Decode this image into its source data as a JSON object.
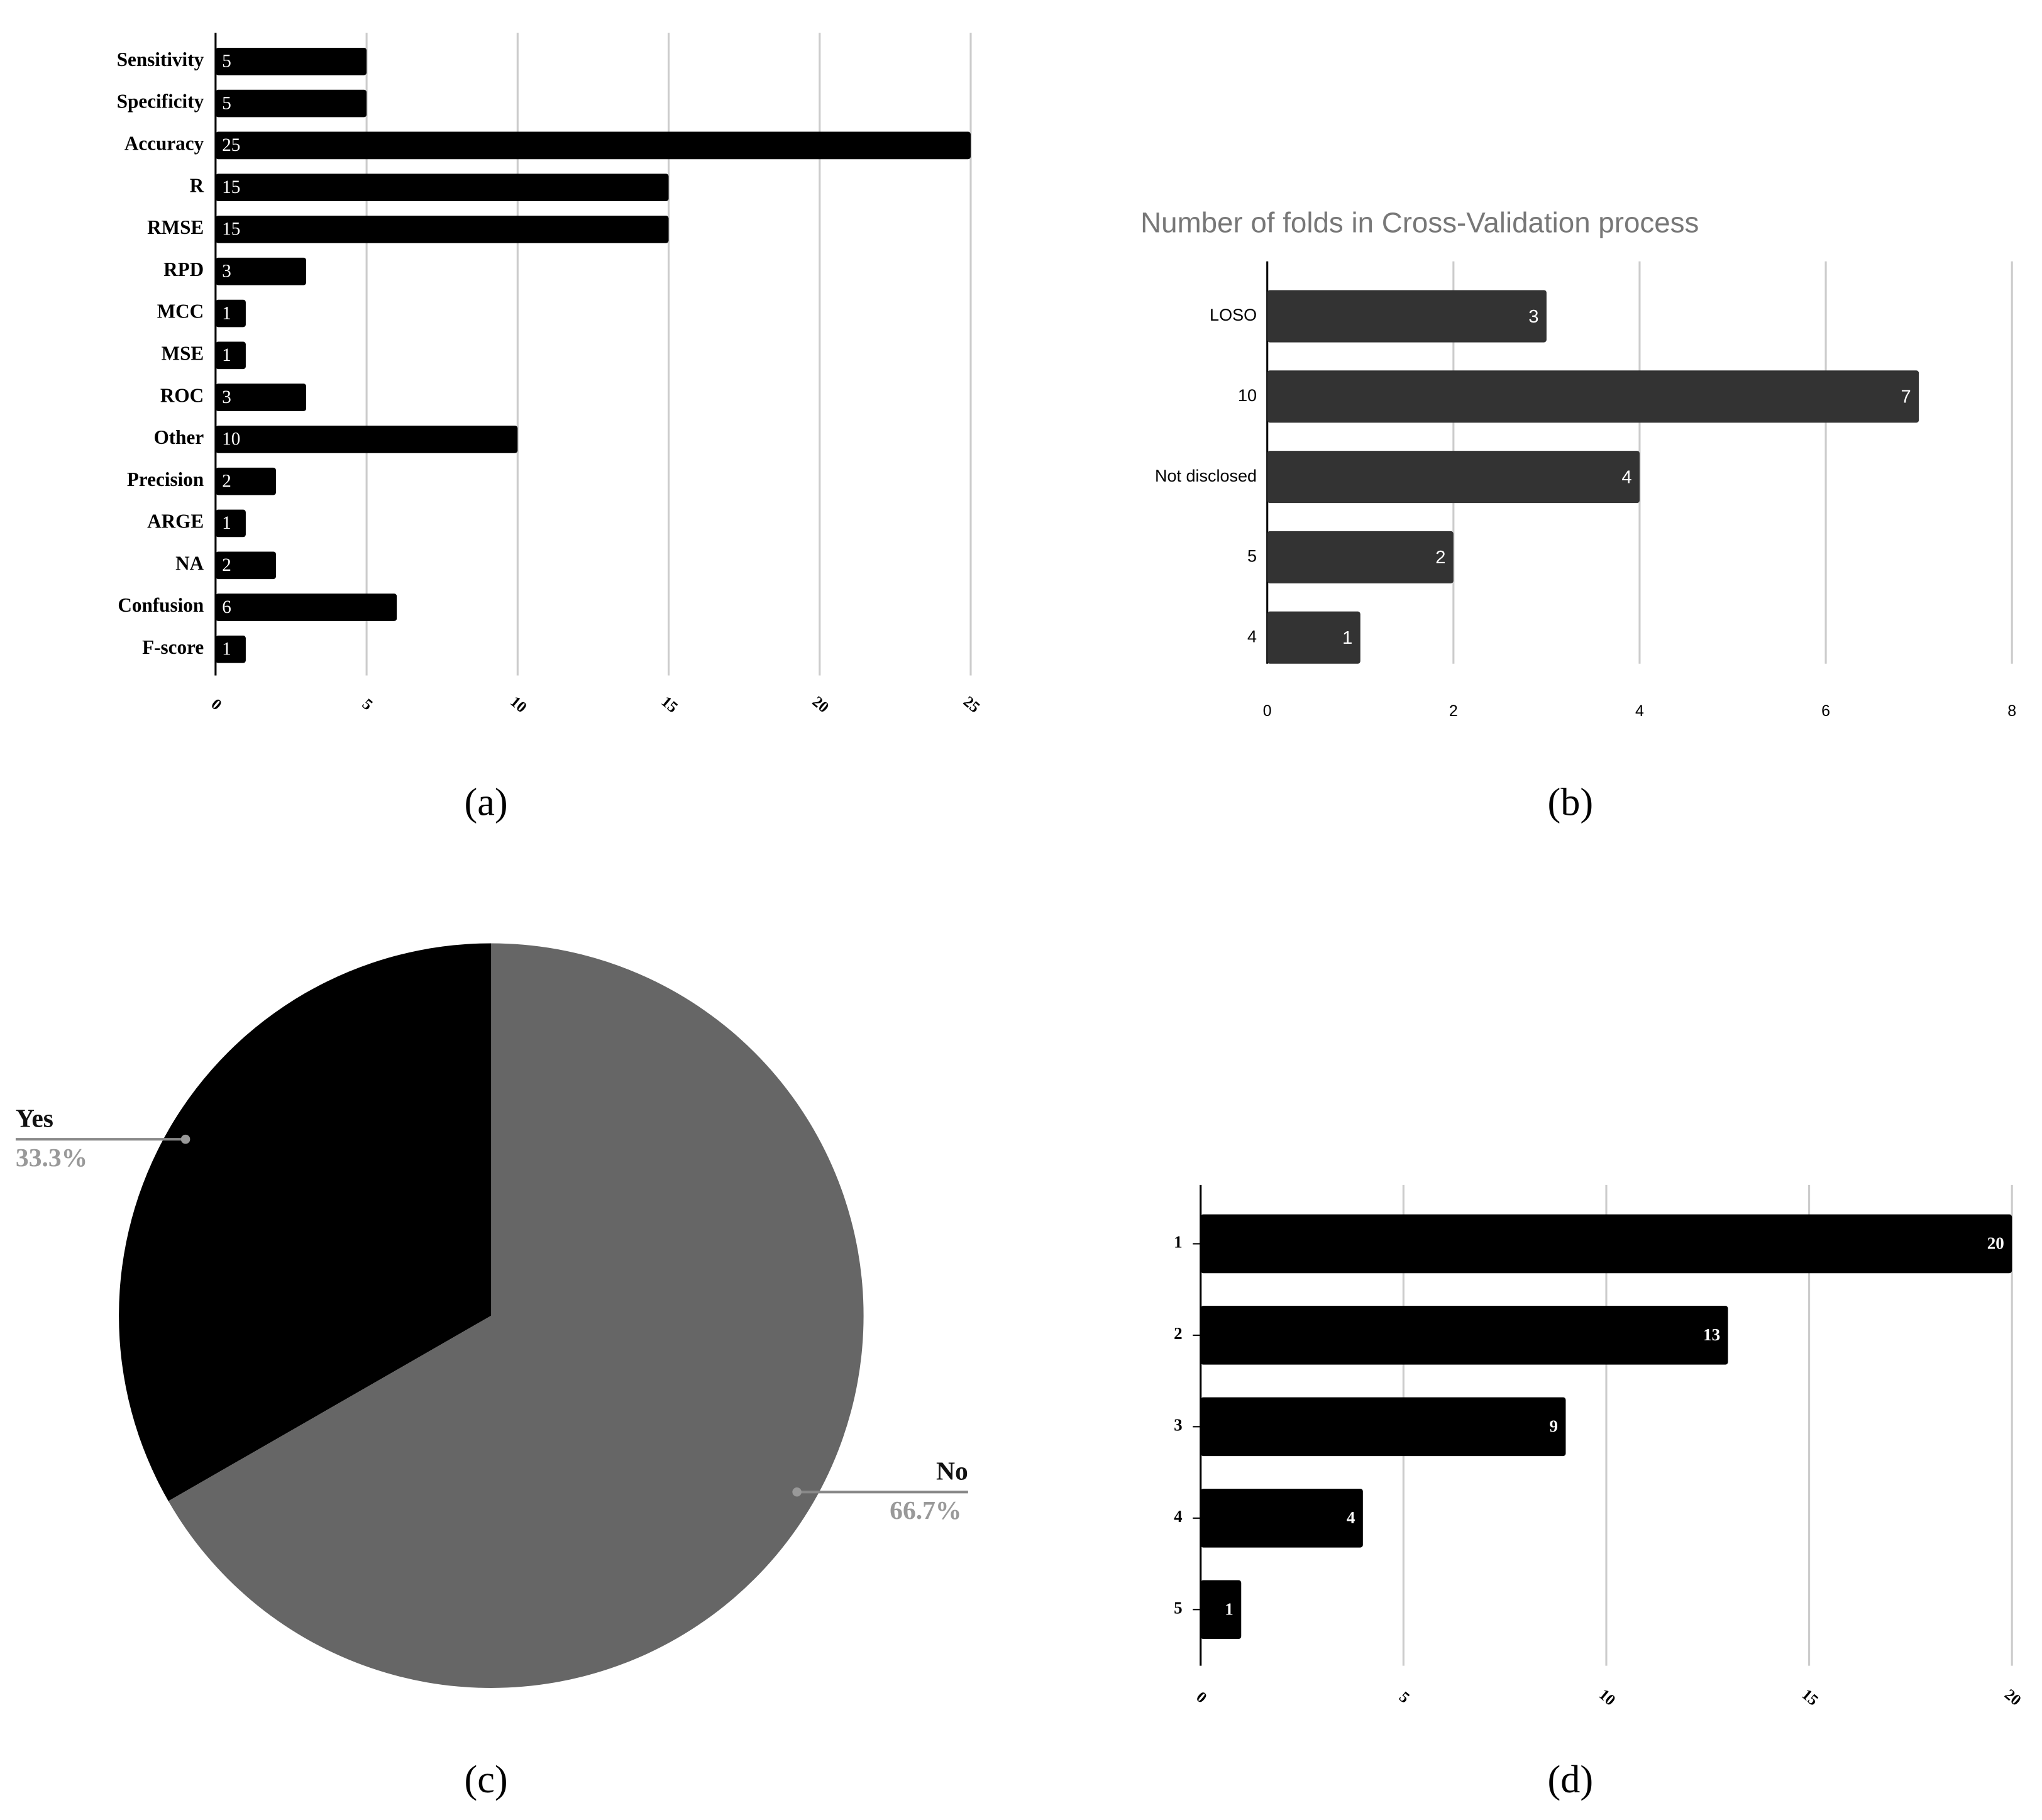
{
  "chart_data": [
    {
      "type": "bar",
      "orientation": "horizontal",
      "caption": "(a)",
      "categories": [
        "Sensitivity",
        "Specificity",
        "Accuracy",
        "R",
        "RMSE",
        "RPD",
        "MCC",
        "MSE",
        "ROC",
        "Other",
        "Precision",
        "ARGE",
        "NA",
        "Confusion",
        "F-score"
      ],
      "values": [
        5,
        5,
        25,
        15,
        15,
        3,
        1,
        1,
        3,
        10,
        2,
        1,
        2,
        6,
        1
      ],
      "color": "#000000",
      "xlim": [
        0,
        25
      ],
      "xticks": [
        0,
        5,
        10,
        15,
        20,
        25
      ],
      "grid": true
    },
    {
      "type": "bar",
      "orientation": "horizontal",
      "caption": "(b)",
      "title": "Number of folds in Cross-Validation process",
      "categories": [
        "LOSO",
        "10",
        "Not disclosed",
        "5",
        "4"
      ],
      "values": [
        3,
        7,
        4,
        2,
        1
      ],
      "color": "#333333",
      "xlim": [
        0,
        8
      ],
      "xticks": [
        0,
        2,
        4,
        6,
        8
      ],
      "grid": true
    },
    {
      "type": "pie",
      "caption": "(c)",
      "categories": [
        "Yes",
        "No"
      ],
      "values": [
        33.3,
        66.7
      ],
      "value_labels": [
        "33.3%",
        "66.7%"
      ],
      "colors": [
        "#000000",
        "#666666"
      ]
    },
    {
      "type": "bar",
      "orientation": "horizontal",
      "caption": "(d)",
      "categories": [
        "1",
        "2",
        "3",
        "4",
        "5"
      ],
      "values": [
        20,
        13,
        9,
        4,
        1
      ],
      "color": "#000000",
      "xlim": [
        0,
        20
      ],
      "xticks": [
        0,
        5,
        10,
        15,
        20
      ],
      "grid": true
    }
  ]
}
